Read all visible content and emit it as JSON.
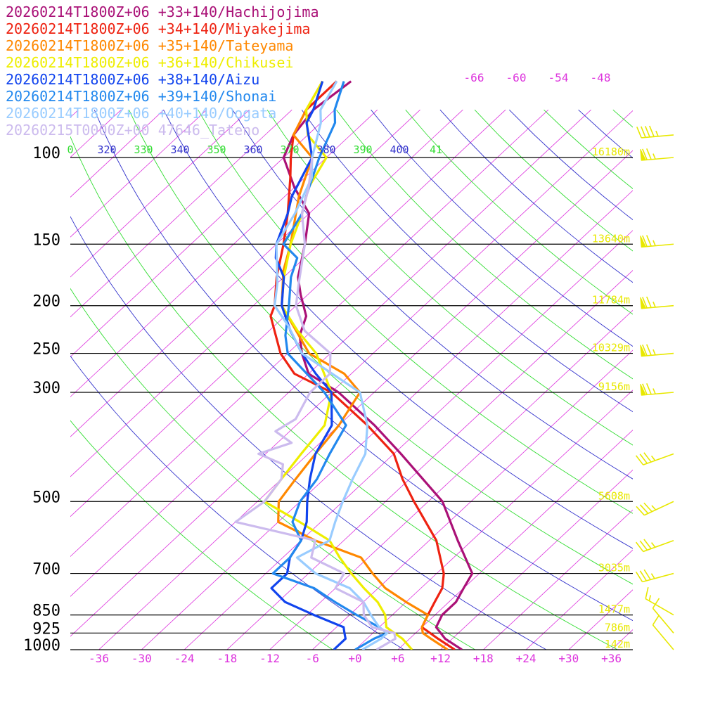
{
  "chart_data": {
    "type": "line",
    "title": "",
    "xlabel": "",
    "ylabel": "",
    "x_unit": "temperature",
    "y_unit": "pressure (hPa)",
    "y_scale": "log",
    "xlim": [
      -40,
      39
    ],
    "ylim": [
      1000,
      100
    ],
    "legend_position": "top-left",
    "pressure_levels": [
      {
        "p": 100,
        "label": "100",
        "height": "16180m"
      },
      {
        "p": 150,
        "label": "150",
        "height": "13640m"
      },
      {
        "p": 200,
        "label": "200",
        "height": "11784m"
      },
      {
        "p": 250,
        "label": "250",
        "height": "10329m"
      },
      {
        "p": 300,
        "label": "300",
        "height": "9156m"
      },
      {
        "p": 500,
        "label": "500",
        "height": "5608m"
      },
      {
        "p": 700,
        "label": "700",
        "height": "3035m"
      },
      {
        "p": 850,
        "label": "850",
        "height": "1477m"
      },
      {
        "p": 925,
        "label": "925",
        "height": "786m"
      },
      {
        "p": 1000,
        "label": "1000",
        "height": "142m"
      }
    ],
    "x_ticks": [
      {
        "v": -36,
        "label": "-36"
      },
      {
        "v": -30,
        "label": "-30"
      },
      {
        "v": -24,
        "label": "-24"
      },
      {
        "v": -18,
        "label": "-18"
      },
      {
        "v": -12,
        "label": "-12"
      },
      {
        "v": -6,
        "label": "-6"
      },
      {
        "v": 0,
        "label": "+0"
      },
      {
        "v": 6,
        "label": "+6"
      },
      {
        "v": 12,
        "label": "+12"
      },
      {
        "v": 18,
        "label": "+18"
      },
      {
        "v": 24,
        "label": "+24"
      },
      {
        "v": 30,
        "label": "+30"
      },
      {
        "v": 36,
        "label": "+36"
      }
    ],
    "top_temp_labels": [
      "-66",
      "-60",
      "-54",
      "-48"
    ],
    "theta_labels": [
      {
        "label": "0",
        "color": "#33dd33"
      },
      {
        "label": "320",
        "color": "#3333cc"
      },
      {
        "label": "330",
        "color": "#33dd33"
      },
      {
        "label": "340",
        "color": "#3333cc"
      },
      {
        "label": "350",
        "color": "#33dd33"
      },
      {
        "label": "360",
        "color": "#3333cc"
      },
      {
        "label": "370",
        "color": "#33dd33"
      },
      {
        "label": "380",
        "color": "#3333cc"
      },
      {
        "label": "390",
        "color": "#33dd33"
      },
      {
        "label": "400",
        "color": "#3333cc"
      },
      {
        "label": "41",
        "color": "#33dd33"
      }
    ],
    "colors": {
      "isotherm": "#dd33dd",
      "dry_adiabat_a": "#33dd33",
      "dry_adiabat_b": "#3333cc",
      "isobar": "#000000",
      "height_label": "#e8e800",
      "wind_barb": "#e8e800"
    },
    "series": [
      {
        "name": "20260214T1800Z+06 +33+140/Hachijojima",
        "color": "#aa1177",
        "points": [
          [
            1000,
            15
          ],
          [
            950,
            11
          ],
          [
            900,
            8
          ],
          [
            850,
            7
          ],
          [
            800,
            7
          ],
          [
            750,
            6
          ],
          [
            700,
            5
          ],
          [
            600,
            -2
          ],
          [
            500,
            -10
          ],
          [
            400,
            -23
          ],
          [
            350,
            -31
          ],
          [
            300,
            -41
          ],
          [
            275,
            -48
          ],
          [
            250,
            -52
          ],
          [
            230,
            -55
          ],
          [
            210,
            -57
          ],
          [
            190,
            -61
          ],
          [
            175,
            -64
          ],
          [
            150,
            -68
          ],
          [
            130,
            -72
          ],
          [
            115,
            -78
          ],
          [
            100,
            -84
          ],
          [
            90,
            -86
          ],
          [
            80,
            -87
          ],
          [
            70,
            -86
          ]
        ]
      },
      {
        "name": "20260214T1800Z+06 +34+140/Miyakejima",
        "color": "#ee2211",
        "points": [
          [
            1000,
            14
          ],
          [
            950,
            10
          ],
          [
            900,
            6
          ],
          [
            850,
            5
          ],
          [
            800,
            4
          ],
          [
            750,
            3
          ],
          [
            700,
            1
          ],
          [
            600,
            -5
          ],
          [
            500,
            -14
          ],
          [
            450,
            -19
          ],
          [
            400,
            -24
          ],
          [
            350,
            -32
          ],
          [
            300,
            -42
          ],
          [
            275,
            -50
          ],
          [
            250,
            -55
          ],
          [
            210,
            -62
          ],
          [
            200,
            -63
          ],
          [
            175,
            -67
          ],
          [
            150,
            -71
          ],
          [
            130,
            -75
          ],
          [
            110,
            -80
          ],
          [
            100,
            -83
          ],
          [
            90,
            -86
          ],
          [
            80,
            -88
          ],
          [
            70,
            -88
          ]
        ]
      },
      {
        "name": "20260214T1800Z+06 +35+140/Tateyama",
        "color": "#ff8800",
        "points": [
          [
            1000,
            13
          ],
          [
            950,
            9
          ],
          [
            925,
            7
          ],
          [
            900,
            6
          ],
          [
            850,
            5
          ],
          [
            800,
            0
          ],
          [
            750,
            -5
          ],
          [
            700,
            -9
          ],
          [
            650,
            -13
          ],
          [
            600,
            -22
          ],
          [
            550,
            -30
          ],
          [
            500,
            -33
          ],
          [
            450,
            -34
          ],
          [
            400,
            -35
          ],
          [
            350,
            -36
          ],
          [
            300,
            -38
          ],
          [
            275,
            -43
          ],
          [
            250,
            -51
          ],
          [
            200,
            -62
          ],
          [
            170,
            -67
          ],
          [
            150,
            -70
          ],
          [
            120,
            -76
          ],
          [
            100,
            -80
          ],
          [
            90,
            -86
          ],
          [
            80,
            -88
          ],
          [
            70,
            -90
          ]
        ]
      },
      {
        "name": "20260214T1800Z+06 +36+140/Chikusei",
        "color": "#eeee00",
        "points": [
          [
            1000,
            8
          ],
          [
            950,
            5
          ],
          [
            925,
            3
          ],
          [
            900,
            1
          ],
          [
            850,
            -1
          ],
          [
            800,
            -4
          ],
          [
            750,
            -8
          ],
          [
            700,
            -12
          ],
          [
            650,
            -16
          ],
          [
            600,
            -20
          ],
          [
            550,
            -27
          ],
          [
            500,
            -35
          ],
          [
            450,
            -36
          ],
          [
            400,
            -37
          ],
          [
            350,
            -38
          ],
          [
            300,
            -42
          ],
          [
            250,
            -50
          ],
          [
            225,
            -56
          ],
          [
            200,
            -62
          ],
          [
            175,
            -66
          ],
          [
            150,
            -70
          ],
          [
            130,
            -73
          ],
          [
            115,
            -76
          ],
          [
            100,
            -78
          ],
          [
            90,
            -84
          ],
          [
            80,
            -88
          ],
          [
            70,
            -90
          ]
        ]
      },
      {
        "name": "20260214T1800Z+06 +38+140/Aizu",
        "color": "#1144ee",
        "points": [
          [
            1000,
            -3
          ],
          [
            950,
            -3
          ],
          [
            925,
            -4
          ],
          [
            900,
            -5
          ],
          [
            850,
            -11
          ],
          [
            800,
            -17
          ],
          [
            750,
            -21
          ],
          [
            700,
            -21
          ],
          [
            650,
            -23
          ],
          [
            600,
            -24
          ],
          [
            550,
            -26
          ],
          [
            500,
            -29
          ],
          [
            450,
            -32
          ],
          [
            400,
            -35
          ],
          [
            350,
            -37
          ],
          [
            300,
            -42
          ],
          [
            275,
            -47
          ],
          [
            250,
            -52
          ],
          [
            225,
            -57
          ],
          [
            200,
            -62
          ],
          [
            175,
            -66
          ],
          [
            160,
            -70
          ],
          [
            150,
            -72
          ],
          [
            130,
            -75
          ],
          [
            120,
            -77
          ],
          [
            100,
            -80
          ],
          [
            85,
            -86
          ],
          [
            80,
            -87
          ],
          [
            70,
            -90
          ]
        ]
      },
      {
        "name": "20260214T1800Z+06 +39+140/Shonai",
        "color": "#2288ee",
        "points": [
          [
            1000,
            0
          ],
          [
            950,
            1
          ],
          [
            925,
            2
          ],
          [
            900,
            0
          ],
          [
            850,
            -5
          ],
          [
            800,
            -10
          ],
          [
            750,
            -15
          ],
          [
            700,
            -23
          ],
          [
            650,
            -23
          ],
          [
            600,
            -24
          ],
          [
            550,
            -28
          ],
          [
            500,
            -30
          ],
          [
            450,
            -31
          ],
          [
            400,
            -33
          ],
          [
            350,
            -35
          ],
          [
            300,
            -43
          ],
          [
            250,
            -54
          ],
          [
            230,
            -57
          ],
          [
            200,
            -61
          ],
          [
            175,
            -65
          ],
          [
            160,
            -67
          ],
          [
            150,
            -71
          ],
          [
            130,
            -73
          ],
          [
            120,
            -75
          ],
          [
            100,
            -79
          ],
          [
            85,
            -82
          ],
          [
            80,
            -84
          ],
          [
            70,
            -87
          ]
        ]
      },
      {
        "name": "20260214T1800Z+06 +40+140/Oogata",
        "color": "#99ccff",
        "points": [
          [
            1000,
            1
          ],
          [
            950,
            2
          ],
          [
            925,
            2
          ],
          [
            900,
            0
          ],
          [
            850,
            -3
          ],
          [
            800,
            -6
          ],
          [
            750,
            -10
          ],
          [
            700,
            -17
          ],
          [
            650,
            -22
          ],
          [
            600,
            -20
          ],
          [
            550,
            -22
          ],
          [
            500,
            -24
          ],
          [
            450,
            -26
          ],
          [
            400,
            -28
          ],
          [
            350,
            -32
          ],
          [
            300,
            -38
          ],
          [
            250,
            -52
          ],
          [
            220,
            -58
          ],
          [
            200,
            -63
          ],
          [
            180,
            -66
          ],
          [
            150,
            -72
          ],
          [
            130,
            -74
          ],
          [
            110,
            -77
          ],
          [
            100,
            -80
          ],
          [
            85,
            -84
          ],
          [
            80,
            -86
          ],
          [
            70,
            -88
          ]
        ]
      },
      {
        "name": "20260215T0000Z+00 47646_Tateno",
        "color": "#ccbbee",
        "points": [
          [
            1000,
            3
          ],
          [
            950,
            4
          ],
          [
            925,
            3
          ],
          [
            900,
            -1
          ],
          [
            850,
            -4
          ],
          [
            800,
            -6
          ],
          [
            750,
            -12
          ],
          [
            700,
            -13
          ],
          [
            650,
            -20
          ],
          [
            600,
            -22
          ],
          [
            550,
            -36
          ],
          [
            500,
            -35
          ],
          [
            450,
            -36
          ],
          [
            420,
            -38
          ],
          [
            400,
            -43
          ],
          [
            380,
            -40
          ],
          [
            360,
            -44
          ],
          [
            340,
            -43
          ],
          [
            300,
            -45
          ],
          [
            275,
            -45
          ],
          [
            250,
            -48
          ],
          [
            225,
            -55
          ],
          [
            200,
            -60
          ],
          [
            180,
            -63
          ],
          [
            150,
            -68
          ],
          [
            130,
            -73
          ],
          [
            115,
            -76
          ],
          [
            100,
            -80
          ]
        ]
      }
    ],
    "wind_barbs": [
      {
        "p": 90,
        "dir": 265,
        "speed": 45
      },
      {
        "p": 100,
        "dir": 265,
        "speed": 75
      },
      {
        "p": 150,
        "dir": 265,
        "speed": 75
      },
      {
        "p": 200,
        "dir": 265,
        "speed": 75
      },
      {
        "p": 250,
        "dir": 265,
        "speed": 75
      },
      {
        "p": 300,
        "dir": 265,
        "speed": 75
      },
      {
        "p": 400,
        "dir": 250,
        "speed": 35
      },
      {
        "p": 500,
        "dir": 245,
        "speed": 35
      },
      {
        "p": 600,
        "dir": 250,
        "speed": 35
      },
      {
        "p": 700,
        "dir": 255,
        "speed": 35
      },
      {
        "p": 850,
        "dir": 300,
        "speed": 15
      },
      {
        "p": 925,
        "dir": 320,
        "speed": 10
      },
      {
        "p": 1000,
        "dir": 320,
        "speed": 10
      }
    ]
  }
}
